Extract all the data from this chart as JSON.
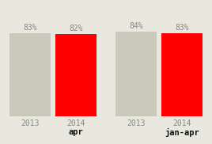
{
  "groups": [
    {
      "label": "apr",
      "bars": [
        {
          "year": "2013",
          "value": 83,
          "color": "#c8c9ba"
        },
        {
          "year": "2014",
          "value": 82,
          "color": "#ff0000"
        }
      ]
    },
    {
      "label": "jan-apr",
      "bars": [
        {
          "year": "2013",
          "value": 84,
          "color": "#c8c9ba"
        },
        {
          "year": "2014",
          "value": 83,
          "color": "#ff0000"
        }
      ]
    }
  ],
  "background_color": "#e8e8df",
  "pct_fontsize": 7.0,
  "year_fontsize": 7.0,
  "period_fontsize": 7.5,
  "text_color": "#888888",
  "period_color": "#111111"
}
